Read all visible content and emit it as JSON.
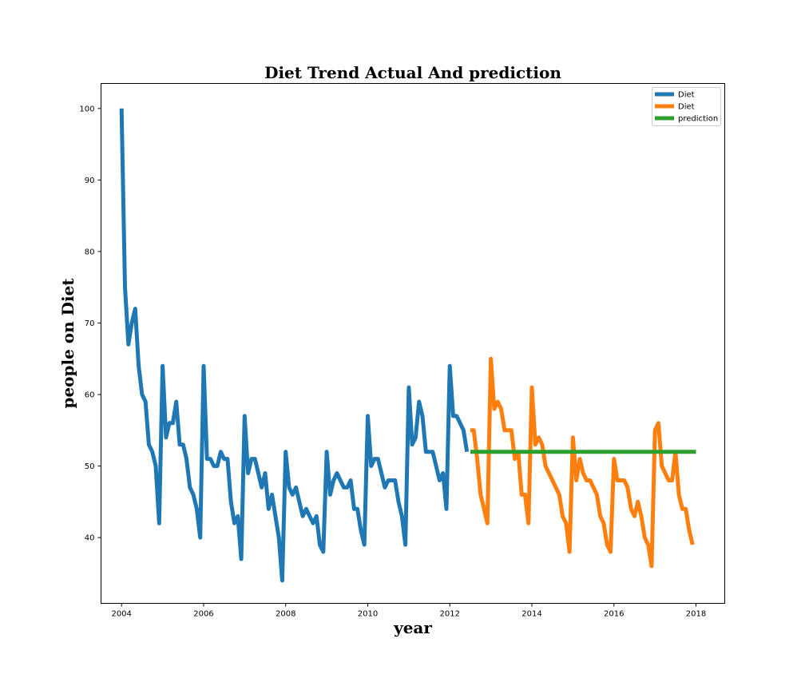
{
  "chart_data": {
    "type": "line",
    "title": "Diet Trend Actual And prediction",
    "xlabel": "year",
    "ylabel": "people on Diet",
    "xlim": [
      2003.5,
      2018.7
    ],
    "ylim": [
      30.8,
      103.5
    ],
    "x_ticks": [
      2004,
      2006,
      2008,
      2010,
      2012,
      2014,
      2016,
      2018
    ],
    "y_ticks": [
      40,
      50,
      60,
      70,
      80,
      90,
      100
    ],
    "legend_position": "top-right",
    "series": [
      {
        "name": "Diet",
        "color": "#1f77b4",
        "start_year": 2004,
        "start_month": 1,
        "values": [
          100,
          75,
          67,
          70,
          72,
          64,
          60,
          59,
          53,
          52,
          50,
          42,
          64,
          54,
          56,
          56,
          59,
          53,
          53,
          51,
          47,
          46,
          44,
          40,
          64,
          51,
          51,
          50,
          50,
          52,
          51,
          51,
          45,
          42,
          43,
          37,
          57,
          49,
          51,
          51,
          49,
          47,
          49,
          44,
          46,
          43,
          40,
          34,
          52,
          47,
          46,
          47,
          45,
          43,
          44,
          43,
          42,
          43,
          39,
          38,
          52,
          46,
          48,
          49,
          48,
          47,
          47,
          48,
          44,
          44,
          41,
          39,
          57,
          50,
          51,
          51,
          49,
          47,
          48,
          48,
          48,
          45,
          43,
          39,
          61,
          53,
          54,
          59,
          57,
          52,
          52,
          52,
          50,
          48,
          49,
          44,
          64,
          57,
          57,
          56,
          55,
          52
        ]
      },
      {
        "name": "Diet",
        "color": "#ff7f0e",
        "start_year": 2012,
        "start_month": 7,
        "values": [
          55,
          55,
          51,
          46,
          44,
          42,
          65,
          58,
          59,
          58,
          55,
          55,
          55,
          51,
          52,
          46,
          46,
          42,
          61,
          53,
          54,
          53,
          50,
          49,
          48,
          47,
          46,
          43,
          42,
          38,
          54,
          48,
          51,
          49,
          48,
          48,
          47,
          46,
          43,
          42,
          39,
          38,
          51,
          48,
          48,
          48,
          47,
          44,
          43,
          45,
          43,
          40,
          39,
          36,
          55,
          56,
          50,
          49,
          48,
          48,
          52,
          46,
          44,
          44,
          41,
          39
        ]
      },
      {
        "name": "prediction",
        "color": "#2ca02c",
        "x": [
          2012.5,
          2018.0
        ],
        "values": [
          52,
          52
        ]
      }
    ]
  }
}
